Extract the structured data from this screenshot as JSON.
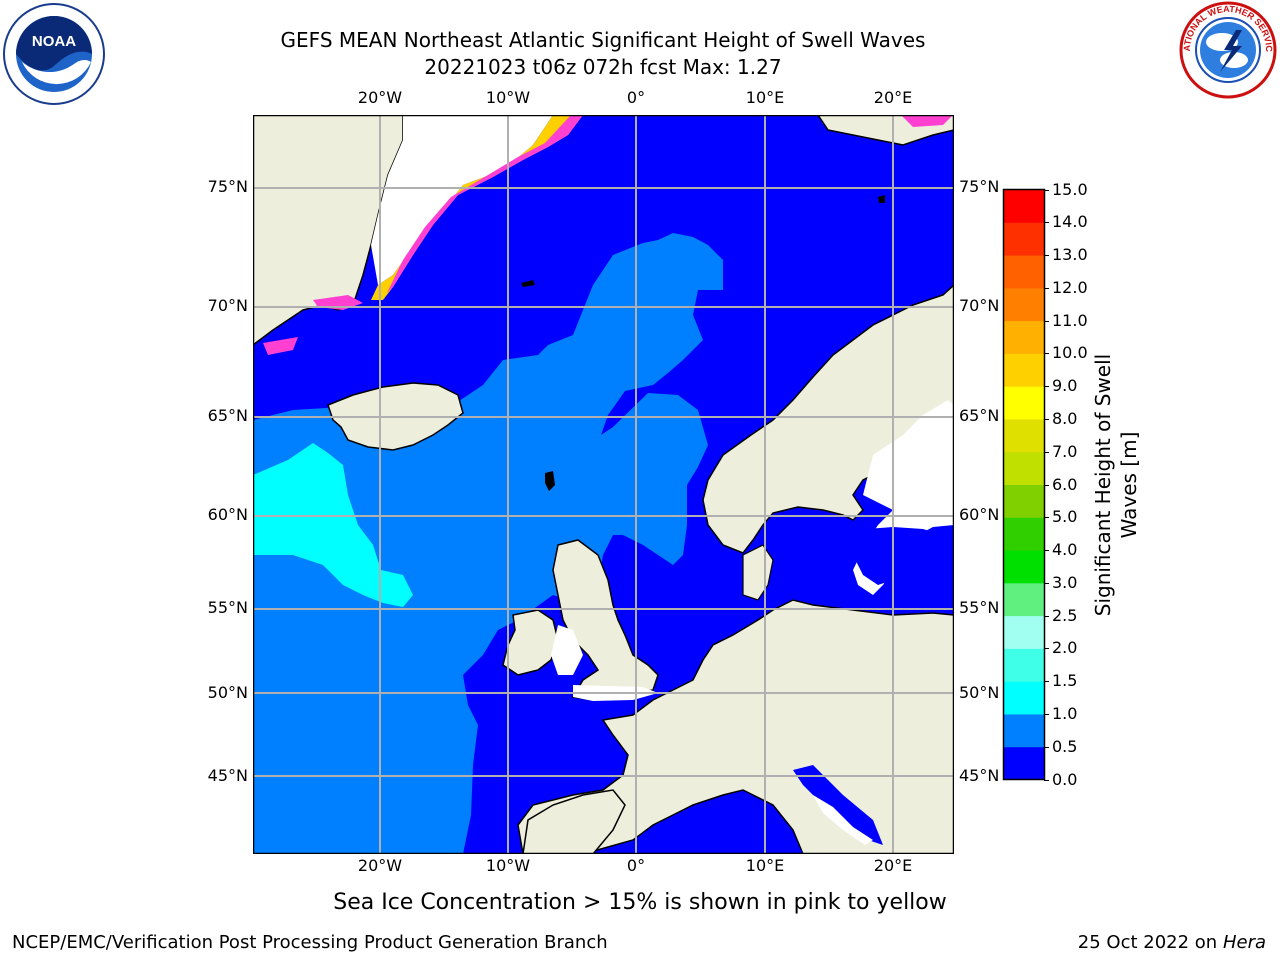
{
  "header": {
    "title": "GEFS MEAN Northeast Atlantic Significant Height of Swell Waves",
    "subtitle": "20221023 t06z 072h fcst   Max: 1.27"
  },
  "logos": {
    "left": {
      "name": "noaa-logo",
      "text": "NOAA"
    },
    "right": {
      "name": "nws-logo",
      "text": "NATIONAL WEATHER SERVICE"
    }
  },
  "map": {
    "lon_labels": [
      "20°W",
      "10°W",
      "0°",
      "10°E",
      "20°E"
    ],
    "lat_labels": [
      "75°N",
      "70°N",
      "65°N",
      "60°N",
      "55°N",
      "50°N",
      "45°N"
    ],
    "colors": {
      "land": "#eeeedd",
      "ocean_0_05": "#0000ff",
      "ocean_05_1": "#0080ff",
      "ocean_1_15": "#00ffff",
      "ice_pink": "#ff40d0",
      "ice_yellow": "#ffd000"
    }
  },
  "colorbar": {
    "label_line1": "Significant Height of Swell",
    "label_line2": "Waves [m]",
    "ticks": [
      "0.0",
      "0.5",
      "1.0",
      "1.5",
      "2.0",
      "2.5",
      "3.0",
      "4.0",
      "5.0",
      "6.0",
      "7.0",
      "8.0",
      "9.0",
      "10.0",
      "11.0",
      "12.0",
      "13.0",
      "14.0",
      "15.0"
    ],
    "colors": [
      "#0000ff",
      "#0080ff",
      "#00ffff",
      "#40ffe8",
      "#a0fff0",
      "#60f080",
      "#00e000",
      "#30d000",
      "#80d000",
      "#c0e000",
      "#e0e000",
      "#ffff00",
      "#ffd000",
      "#ffb000",
      "#ff8000",
      "#ff6000",
      "#ff3000",
      "#ff0000"
    ]
  },
  "footer": {
    "note": "Sea Ice Concentration > 15% is shown in pink to yellow",
    "left": "NCEP/EMC/Verification Post Processing Product Generation Branch",
    "right_date": "25 Oct 2022 on ",
    "right_host": "Hera"
  }
}
